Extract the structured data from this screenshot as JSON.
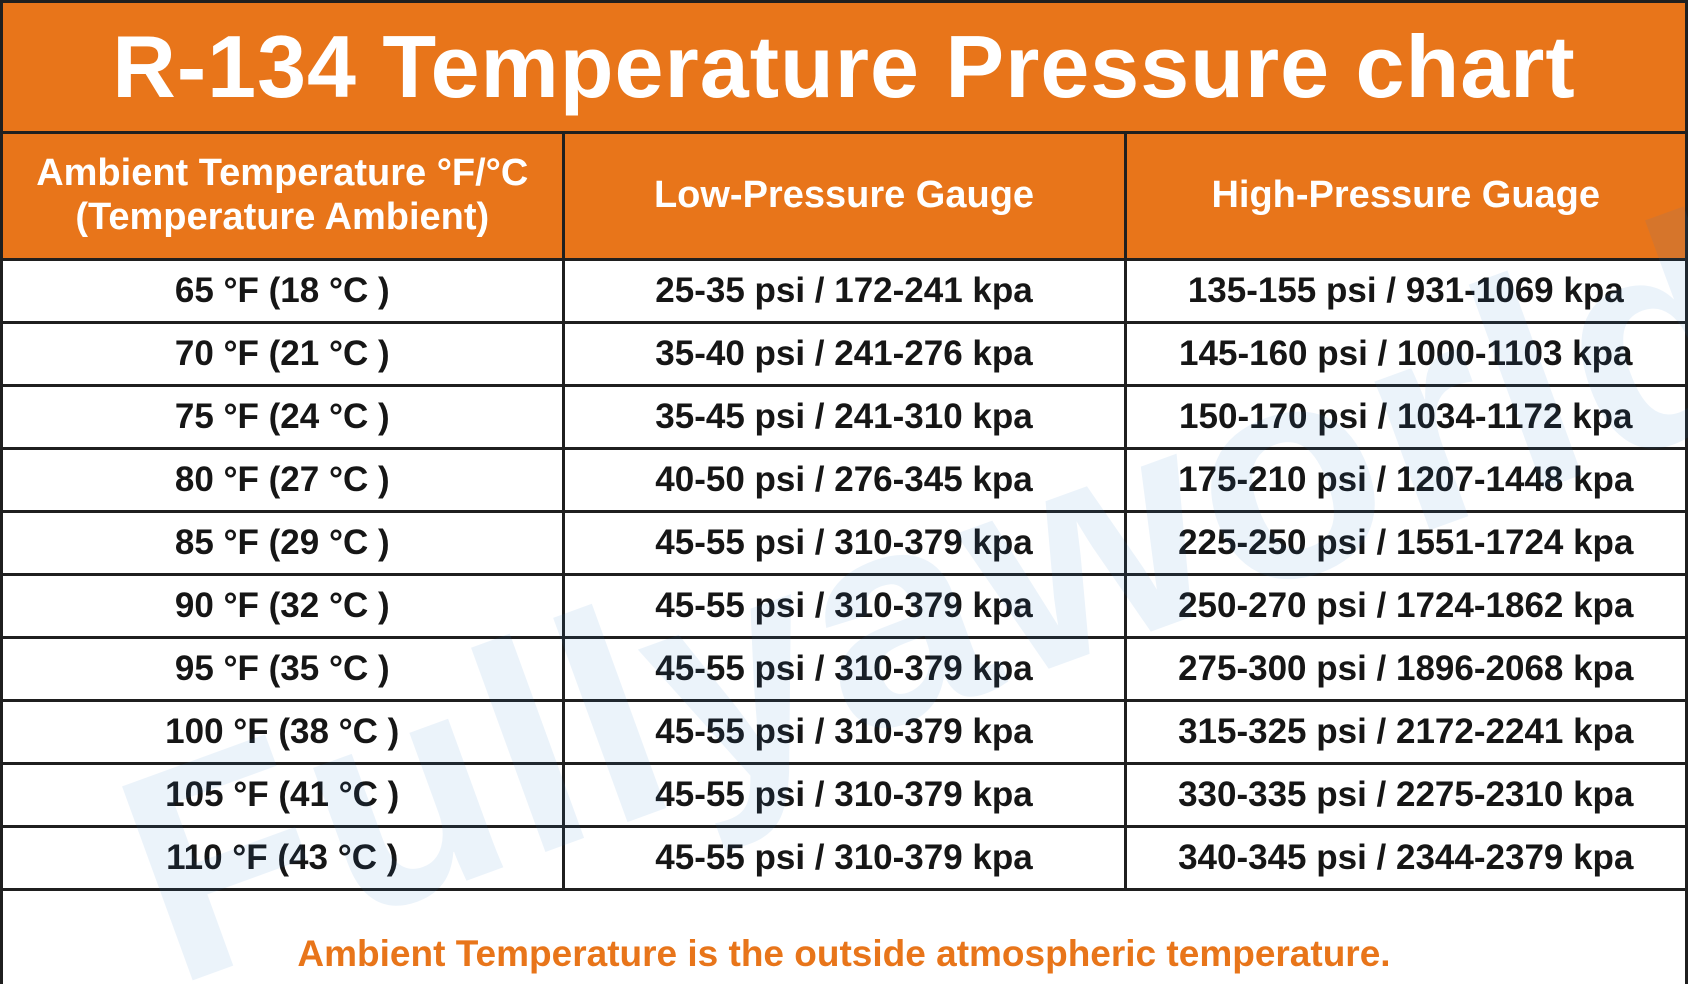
{
  "title": "R-134 Temperature Pressure chart",
  "headers": {
    "ambient_line1": "Ambient Temperature °F/°C",
    "ambient_line2": "(Temperature Ambient)",
    "low": "Low-Pressure Gauge",
    "high": "High-Pressure Guage"
  },
  "rows": [
    {
      "temp": "65 °F (18 °C )",
      "low": "25-35 psi / 172-241 kpa",
      "high": "135-155 psi / 931-1069 kpa"
    },
    {
      "temp": "70 °F (21 °C )",
      "low": "35-40 psi / 241-276 kpa",
      "high": "145-160 psi / 1000-1103 kpa"
    },
    {
      "temp": "75 °F (24 °C )",
      "low": "35-45 psi / 241-310 kpa",
      "high": "150-170 psi / 1034-1172 kpa"
    },
    {
      "temp": "80 °F (27 °C )",
      "low": "40-50 psi / 276-345 kpa",
      "high": "175-210 psi / 1207-1448 kpa"
    },
    {
      "temp": "85 °F (29 °C )",
      "low": "45-55 psi / 310-379 kpa",
      "high": "225-250 psi / 1551-1724 kpa"
    },
    {
      "temp": "90 °F (32 °C )",
      "low": "45-55 psi / 310-379 kpa",
      "high": "250-270 psi / 1724-1862 kpa"
    },
    {
      "temp": "95 °F (35 °C )",
      "low": "45-55 psi / 310-379 kpa",
      "high": "275-300 psi / 1896-2068 kpa"
    },
    {
      "temp": "100 °F (38 °C )",
      "low": "45-55 psi / 310-379 kpa",
      "high": "315-325 psi / 2172-2241 kpa"
    },
    {
      "temp": "105 °F (41 °C )",
      "low": "45-55 psi / 310-379 kpa",
      "high": "330-335 psi / 2275-2310 kpa"
    },
    {
      "temp": "110 °F (43 °C )",
      "low": "45-55 psi / 310-379 kpa",
      "high": "340-345 psi / 2344-2379 kpa"
    }
  ],
  "footer": "Ambient Temperature is the outside atmospheric temperature.",
  "watermark": "Fullyaworld",
  "colors": {
    "header_orange": "#e8751a",
    "text_dark": "#161616",
    "border": "#1f1f1f",
    "watermark_blue": "#2e7fd0"
  }
}
